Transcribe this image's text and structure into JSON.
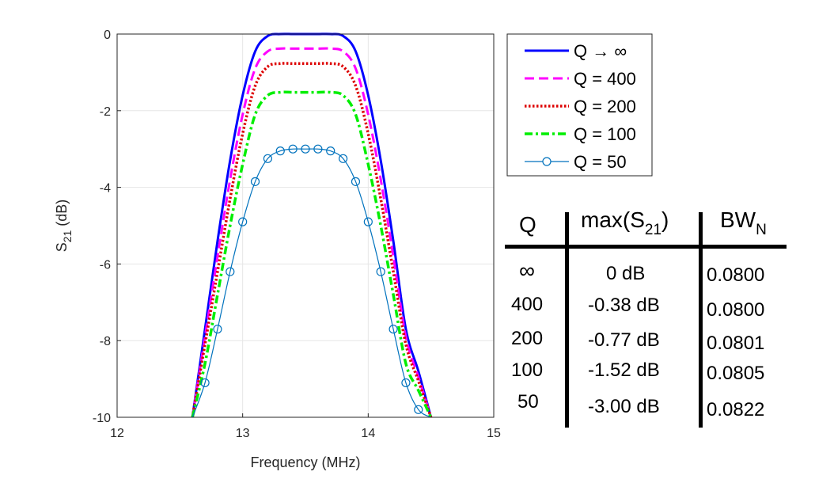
{
  "chart_data": {
    "type": "line",
    "title": "",
    "xlabel": "Frequency (MHz)",
    "ylabel": "S",
    "ylabel_sub": "21",
    "ylabel_unit": "(dB)",
    "xlim": [
      12,
      15
    ],
    "ylim": [
      -10,
      0
    ],
    "xticks": [
      "12",
      "13",
      "14",
      "15"
    ],
    "yticks": [
      "0",
      "-2",
      "-4",
      "-6",
      "-8",
      "-10"
    ],
    "grid": true,
    "legend_placement": "top-right, outside plot",
    "x": [
      12.6,
      12.7,
      12.8,
      12.9,
      13.0,
      13.1,
      13.2,
      13.3,
      13.4,
      13.5,
      13.6,
      13.7,
      13.8,
      13.9,
      14.0,
      14.1,
      14.2,
      14.3,
      14.4,
      14.5
    ],
    "series": [
      {
        "name": "Q → ∞",
        "color": "#0000ff",
        "style": "solid",
        "values": [
          -10,
          -7.7,
          -5.4,
          -3.3,
          -1.6,
          -0.45,
          -0.05,
          0,
          0,
          0,
          0,
          0,
          -0.05,
          -0.45,
          -1.6,
          -3.3,
          -5.4,
          -7.7,
          -8.8,
          -10
        ]
      },
      {
        "name": "Q = 400",
        "color": "#ff00ff",
        "style": "dashed",
        "values": [
          -10,
          -7.9,
          -5.8,
          -3.8,
          -2.1,
          -0.9,
          -0.45,
          -0.38,
          -0.38,
          -0.38,
          -0.38,
          -0.38,
          -0.45,
          -0.9,
          -2.1,
          -3.8,
          -5.8,
          -7.9,
          -8.95,
          -10
        ]
      },
      {
        "name": "Q = 200",
        "color": "#dd0000",
        "style": "dotted",
        "values": [
          -10,
          -8.1,
          -6.2,
          -4.3,
          -2.6,
          -1.35,
          -0.85,
          -0.77,
          -0.77,
          -0.77,
          -0.77,
          -0.77,
          -0.85,
          -1.35,
          -2.6,
          -4.3,
          -6.2,
          -8.1,
          -9.05,
          -10
        ]
      },
      {
        "name": "Q = 100",
        "color": "#00ee00",
        "style": "dashdot",
        "values": [
          -10,
          -8.6,
          -6.8,
          -5.0,
          -3.4,
          -2.1,
          -1.6,
          -1.52,
          -1.52,
          -1.52,
          -1.52,
          -1.52,
          -1.6,
          -2.1,
          -3.4,
          -5.0,
          -6.8,
          -8.6,
          -9.3,
          -10
        ]
      },
      {
        "name": "Q = 50",
        "color": "#0072bd",
        "style": "solid-circle",
        "values": [
          -10,
          -9.1,
          -7.7,
          -6.2,
          -4.9,
          -3.85,
          -3.25,
          -3.05,
          -3.0,
          -3.0,
          -3.0,
          -3.05,
          -3.25,
          -3.85,
          -4.9,
          -6.2,
          -7.7,
          -9.1,
          -9.8,
          -10
        ]
      }
    ]
  },
  "table": {
    "headers": {
      "q": "Q",
      "max_main": "max(S",
      "max_sub": "21",
      "max_end": ")",
      "bw_main": "BW",
      "bw_sub": "N"
    },
    "rows": [
      {
        "q": "∞",
        "max": "0 dB",
        "bw": "0.0800"
      },
      {
        "q": "400",
        "max": "-0.38 dB",
        "bw": "0.0800"
      },
      {
        "q": "200",
        "max": "-0.77 dB",
        "bw": "0.0801"
      },
      {
        "q": "100",
        "max": "-1.52 dB",
        "bw": "0.0805"
      },
      {
        "q": "50",
        "max": "-3.00 dB",
        "bw": "0.0822"
      }
    ]
  }
}
